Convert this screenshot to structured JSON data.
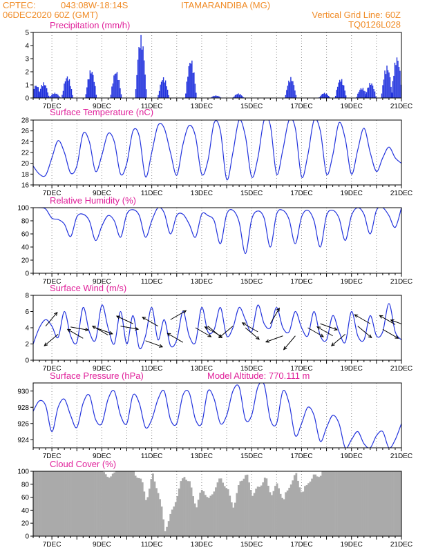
{
  "header": {
    "source": "CPTEC:",
    "coords": "043:08W-18:14S",
    "station": "ITAMARANDIBA (MG)",
    "run": "06DEC2020 60Z (GMT)",
    "grid_note": "Vertical Grid Line: 60Z",
    "model": "TQ0126L028"
  },
  "colors": {
    "header": "#f08c28",
    "title": "#e0209a",
    "series": "#2233dd",
    "cloud": "#aaaaaa"
  },
  "chart_data": [
    {
      "id": "precip",
      "type": "bar",
      "title": "Precipitation (mm/h)",
      "xlim": [
        6.25,
        21.0
      ],
      "ylim": [
        0,
        5
      ],
      "yticks": [
        0,
        1,
        2,
        3,
        4,
        5
      ],
      "x_tick_labels": [
        "7DEC",
        "9DEC",
        "11DEC",
        "13DEC",
        "15DEC",
        "17DEC",
        "19DEC",
        "21DEC"
      ],
      "x_tick_values": [
        7,
        9,
        11,
        13,
        15,
        17,
        19,
        21
      ],
      "events": [
        {
          "day": 6.35,
          "peak": 1.0
        },
        {
          "day": 6.65,
          "peak": 1.2
        },
        {
          "day": 7.1,
          "peak": 0.4
        },
        {
          "day": 7.6,
          "peak": 1.7
        },
        {
          "day": 8.55,
          "peak": 2.2
        },
        {
          "day": 9.55,
          "peak": 2.1
        },
        {
          "day": 10.55,
          "peak": 4.8
        },
        {
          "day": 11.45,
          "peak": 1.6
        },
        {
          "day": 12.55,
          "peak": 3.0
        },
        {
          "day": 13.55,
          "peak": 0.2
        },
        {
          "day": 14.45,
          "peak": 0.35
        },
        {
          "day": 16.55,
          "peak": 1.6
        },
        {
          "day": 17.9,
          "peak": 0.4
        },
        {
          "day": 18.55,
          "peak": 1.5
        },
        {
          "day": 19.4,
          "peak": 0.8
        },
        {
          "day": 19.75,
          "peak": 1.2
        },
        {
          "day": 20.4,
          "peak": 2.5
        },
        {
          "day": 20.8,
          "peak": 3.2
        }
      ]
    },
    {
      "id": "temp",
      "type": "line",
      "title": "Surface Temperature (nC)",
      "xlim": [
        6.25,
        21.0
      ],
      "ylim": [
        16,
        28
      ],
      "yticks": [
        16,
        18,
        20,
        22,
        24,
        26,
        28
      ],
      "x_tick_labels": [
        "7DEC",
        "9DEC",
        "11DEC",
        "13DEC",
        "15DEC",
        "17DEC",
        "19DEC",
        "21DEC"
      ],
      "x_tick_values": [
        7,
        9,
        11,
        13,
        15,
        17,
        19,
        21
      ],
      "x": [
        6.25,
        6.5,
        6.75,
        7.0,
        7.25,
        7.5,
        7.75,
        8.0,
        8.25,
        8.5,
        8.75,
        9.0,
        9.25,
        9.5,
        9.75,
        10.0,
        10.25,
        10.5,
        10.75,
        11.0,
        11.25,
        11.5,
        11.75,
        12.0,
        12.25,
        12.5,
        12.75,
        13.0,
        13.25,
        13.5,
        13.75,
        14.0,
        14.25,
        14.5,
        14.75,
        15.0,
        15.25,
        15.5,
        15.75,
        16.0,
        16.25,
        16.5,
        16.75,
        17.0,
        17.25,
        17.5,
        17.75,
        18.0,
        18.25,
        18.5,
        18.75,
        19.0,
        19.25,
        19.5,
        19.75,
        20.0,
        20.25,
        20.5,
        20.75,
        21.0
      ],
      "y": [
        19.5,
        18.0,
        17.8,
        21.0,
        24.2,
        22.0,
        18.2,
        19.5,
        25.5,
        24.0,
        18.5,
        21.5,
        25.5,
        24.0,
        18.0,
        20.0,
        26.0,
        25.0,
        17.5,
        22.0,
        27.0,
        26.5,
        22.0,
        17.8,
        23.5,
        27.0,
        25.0,
        18.0,
        20.5,
        27.5,
        26.0,
        17.0,
        22.0,
        28.0,
        25.0,
        17.5,
        21.0,
        28.0,
        27.0,
        18.0,
        22.5,
        28.0,
        26.5,
        17.5,
        21.5,
        28.0,
        26.0,
        18.0,
        21.5,
        27.5,
        24.5,
        18.0,
        22.5,
        26.5,
        22.0,
        18.5,
        21.0,
        23.0,
        21.0,
        20.0
      ]
    },
    {
      "id": "rh",
      "type": "line",
      "title": "Relative Humidity (%)",
      "xlim": [
        6.25,
        21.0
      ],
      "ylim": [
        0,
        100
      ],
      "yticks": [
        0,
        20,
        40,
        60,
        80,
        100
      ],
      "x_tick_labels": [
        "7DEC",
        "9DEC",
        "11DEC",
        "13DEC",
        "15DEC",
        "17DEC",
        "19DEC",
        "21DEC"
      ],
      "x_tick_values": [
        7,
        9,
        11,
        13,
        15,
        17,
        19,
        21
      ],
      "x": [
        6.25,
        6.5,
        6.75,
        7.0,
        7.25,
        7.5,
        7.75,
        8.0,
        8.25,
        8.5,
        8.75,
        9.0,
        9.25,
        9.5,
        9.75,
        10.0,
        10.25,
        10.5,
        10.75,
        11.0,
        11.25,
        11.5,
        11.75,
        12.0,
        12.25,
        12.5,
        12.75,
        13.0,
        13.25,
        13.5,
        13.75,
        14.0,
        14.25,
        14.5,
        14.75,
        15.0,
        15.25,
        15.5,
        15.75,
        16.0,
        16.25,
        16.5,
        16.75,
        17.0,
        17.25,
        17.5,
        17.75,
        18.0,
        18.25,
        18.5,
        18.75,
        19.0,
        19.25,
        19.5,
        19.75,
        20.0,
        20.25,
        20.5,
        20.75,
        21.0
      ],
      "y": [
        100,
        100,
        98,
        84,
        82,
        75,
        56,
        86,
        90,
        80,
        50,
        72,
        88,
        80,
        55,
        90,
        97,
        88,
        55,
        80,
        100,
        92,
        60,
        88,
        90,
        75,
        55,
        90,
        88,
        80,
        45,
        90,
        96,
        78,
        30,
        82,
        95,
        84,
        40,
        90,
        96,
        82,
        45,
        86,
        96,
        80,
        40,
        88,
        96,
        84,
        50,
        88,
        100,
        90,
        60,
        96,
        100,
        88,
        70,
        100
      ]
    },
    {
      "id": "wind",
      "type": "line",
      "title": "Surface Wind (m/s)",
      "xlim": [
        6.25,
        21.0
      ],
      "ylim": [
        0,
        8
      ],
      "yticks": [
        0,
        2,
        4,
        6,
        8
      ],
      "x_tick_labels": [
        "7DEC",
        "9DEC",
        "11DEC",
        "13DEC",
        "15DEC",
        "17DEC",
        "19DEC",
        "21DEC"
      ],
      "x_tick_values": [
        7,
        9,
        11,
        13,
        15,
        17,
        19,
        21
      ],
      "x": [
        6.25,
        6.5,
        6.75,
        7.0,
        7.25,
        7.5,
        7.75,
        8.0,
        8.25,
        8.5,
        8.75,
        9.0,
        9.25,
        9.5,
        9.75,
        10.0,
        10.25,
        10.5,
        10.75,
        11.0,
        11.25,
        11.5,
        11.75,
        12.0,
        12.25,
        12.5,
        12.75,
        13.0,
        13.25,
        13.5,
        13.75,
        14.0,
        14.25,
        14.5,
        14.75,
        15.0,
        15.25,
        15.5,
        15.75,
        16.0,
        16.25,
        16.5,
        16.75,
        17.0,
        17.25,
        17.5,
        17.75,
        18.0,
        18.25,
        18.5,
        18.75,
        19.0,
        19.25,
        19.5,
        19.75,
        20.0,
        20.25,
        20.5,
        20.75,
        21.0
      ],
      "y": [
        2.0,
        4.0,
        5.0,
        4.2,
        2.8,
        6.0,
        3.0,
        2.2,
        6.5,
        3.5,
        2.5,
        6.8,
        4.0,
        2.0,
        6.0,
        2.0,
        5.5,
        1.5,
        3.0,
        6.5,
        2.5,
        5.0,
        1.8,
        2.5,
        6.0,
        3.0,
        2.2,
        6.5,
        3.5,
        3.8,
        6.5,
        3.0,
        4.0,
        6.5,
        5.0,
        3.5,
        6.8,
        4.5,
        4.0,
        6.5,
        4.0,
        3.5,
        6.0,
        4.0,
        3.0,
        6.0,
        3.0,
        2.5,
        5.5,
        3.5,
        2.2,
        6.0,
        3.0,
        2.5,
        5.5,
        3.0,
        3.5,
        7.0,
        3.5,
        2.5
      ]
    },
    {
      "id": "pressure",
      "type": "line",
      "title": "Surface Pressure (hPa)",
      "annotation": "Model Altitude: 770.111 m",
      "xlim": [
        6.25,
        21.0
      ],
      "ylim": [
        923.0,
        931.0
      ],
      "yticks": [
        924,
        926,
        928,
        930
      ],
      "x_tick_labels": [
        "7DEC",
        "9DEC",
        "11DEC",
        "13DEC",
        "15DEC",
        "17DEC",
        "19DEC",
        "21DEC"
      ],
      "x_tick_values": [
        7,
        9,
        11,
        13,
        15,
        17,
        19,
        21
      ],
      "x": [
        6.25,
        6.5,
        6.75,
        7.0,
        7.25,
        7.5,
        7.75,
        8.0,
        8.25,
        8.5,
        8.75,
        9.0,
        9.25,
        9.5,
        9.75,
        10.0,
        10.25,
        10.5,
        10.75,
        11.0,
        11.25,
        11.5,
        11.75,
        12.0,
        12.25,
        12.5,
        12.75,
        13.0,
        13.25,
        13.5,
        13.75,
        14.0,
        14.25,
        14.5,
        14.75,
        15.0,
        15.25,
        15.5,
        15.75,
        16.0,
        16.25,
        16.5,
        16.75,
        17.0,
        17.25,
        17.5,
        17.75,
        18.0,
        18.25,
        18.5,
        18.75,
        19.0,
        19.25,
        19.5,
        19.75,
        20.0,
        20.25,
        20.5,
        20.75,
        21.0
      ],
      "y": [
        927.5,
        928.8,
        928.2,
        925.0,
        928.0,
        929.0,
        927.0,
        925.5,
        928.5,
        929.5,
        926.5,
        926.0,
        929.0,
        930.0,
        927.0,
        926.0,
        929.5,
        928.5,
        925.5,
        926.5,
        929.0,
        930.0,
        926.5,
        926.0,
        929.5,
        929.8,
        926.5,
        926.0,
        930.0,
        929.0,
        926.0,
        927.0,
        930.0,
        930.5,
        926.5,
        927.0,
        930.5,
        930.8,
        926.5,
        926.0,
        930.0,
        928.5,
        924.5,
        926.0,
        928.0,
        927.0,
        923.8,
        925.5,
        927.0,
        926.0,
        923.0,
        924.0,
        925.0,
        923.5,
        923.0,
        924.5,
        925.0,
        923.0,
        924.0,
        926.0
      ]
    },
    {
      "id": "cloud",
      "type": "area",
      "title": "Cloud Cover (%)",
      "xlim": [
        6.25,
        21.0
      ],
      "ylim": [
        0,
        100
      ],
      "yticks": [
        0,
        20,
        40,
        60,
        80,
        100
      ],
      "x_tick_labels": [
        "7DEC",
        "9DEC",
        "11DEC",
        "13DEC",
        "15DEC",
        "17DEC",
        "19DEC",
        "21DEC"
      ],
      "x_tick_values": [
        7,
        9,
        11,
        13,
        15,
        17,
        19,
        21
      ],
      "x": [
        6.25,
        6.5,
        6.75,
        7.0,
        7.25,
        7.5,
        7.75,
        8.0,
        8.25,
        8.5,
        8.75,
        9.0,
        9.25,
        9.5,
        9.75,
        10.0,
        10.25,
        10.5,
        10.75,
        11.0,
        11.25,
        11.5,
        11.75,
        12.0,
        12.25,
        12.5,
        12.75,
        13.0,
        13.25,
        13.5,
        13.75,
        14.0,
        14.25,
        14.5,
        14.75,
        15.0,
        15.25,
        15.5,
        15.75,
        16.0,
        16.25,
        16.5,
        16.75,
        17.0,
        17.25,
        17.5,
        17.75,
        18.0,
        18.25,
        18.5,
        18.75,
        19.0,
        19.25,
        19.5,
        19.75,
        20.0,
        20.25,
        20.5,
        20.75,
        21.0
      ],
      "y": [
        100,
        100,
        100,
        100,
        100,
        100,
        100,
        100,
        100,
        100,
        100,
        100,
        98,
        100,
        100,
        100,
        100,
        96,
        60,
        100,
        70,
        15,
        40,
        70,
        100,
        85,
        50,
        80,
        60,
        80,
        95,
        75,
        50,
        90,
        100,
        70,
        80,
        95,
        70,
        85,
        60,
        85,
        100,
        70,
        90,
        98,
        100,
        100,
        100,
        100,
        100,
        100,
        100,
        100,
        100,
        100,
        100,
        100,
        100,
        100
      ]
    }
  ],
  "wind_barbs": {
    "start_day": 6.25,
    "step_day": 0.5,
    "directions_deg": [
      230,
      40,
      230,
      100,
      300,
      110,
      300,
      100,
      295,
      110,
      300,
      60,
      300,
      120,
      130,
      300,
      230,
      130,
      300,
      30,
      250,
      220,
      120,
      110,
      300,
      230,
      130,
      300,
      120,
      300,
      290,
      130,
      110,
      300,
      105,
      280,
      120,
      300,
      100,
      300
    ],
    "speeds": [
      3.0,
      4.2,
      3.2,
      4.1,
      2.7,
      4.0,
      3.1,
      4.2,
      4.5,
      2.4,
      4.2,
      5.0,
      2.2,
      4.0,
      4.2,
      3.0,
      4.2,
      4.0,
      3.5,
      4.5,
      3.0,
      3.0,
      4.0,
      4.5,
      3.0,
      3.2,
      4.2,
      4.5,
      3.8,
      4.4,
      4.2,
      3.0,
      4.5,
      4.2,
      3.2,
      4.5,
      4.0,
      3.0,
      3.5,
      3.5
    ]
  }
}
